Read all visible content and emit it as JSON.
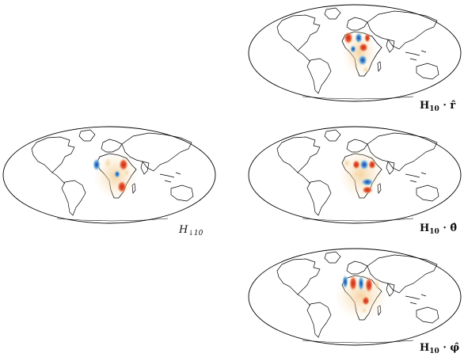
{
  "panels": [
    {
      "id": "H10-r",
      "label": "H",
      "subscript": "10",
      "suffix": " · r̂",
      "bold": true
    },
    {
      "id": "Hdown10",
      "label": "H",
      "subscript": "↓10",
      "suffix": "",
      "bold": false
    },
    {
      "id": "H10-theta",
      "label": "H",
      "subscript": "10",
      "suffix": " · θ̂",
      "bold": true
    },
    {
      "id": "H10-phi",
      "label": "H",
      "subscript": "10",
      "suffix": " · φ̂",
      "bold": true
    }
  ],
  "colors": {
    "positive": "#c8251b",
    "negative": "#1a4fb5",
    "weak_positive": "#f2c08a",
    "weak_negative": "#8fc4e0",
    "land": "#000000",
    "background": "#ffffff"
  },
  "projection": "mollweide"
}
